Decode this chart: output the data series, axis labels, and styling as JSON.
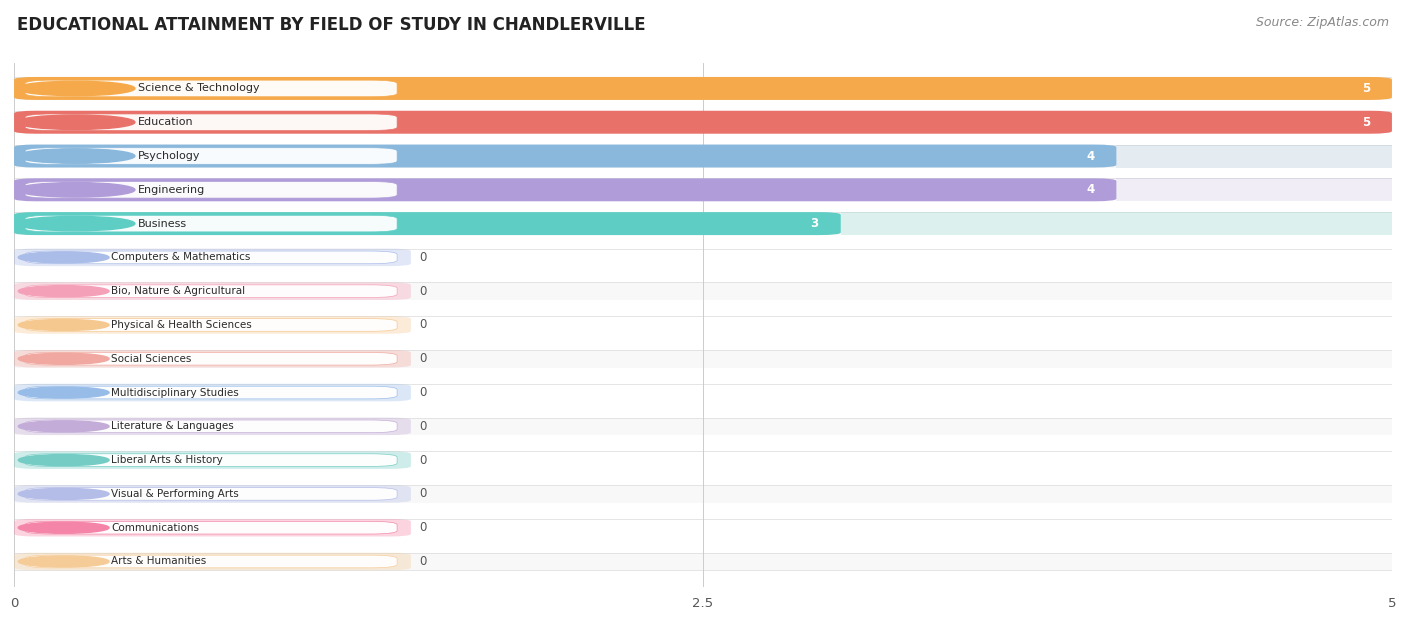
{
  "title": "EDUCATIONAL ATTAINMENT BY FIELD OF STUDY IN CHANDLERVILLE",
  "source": "Source: ZipAtlas.com",
  "categories": [
    "Science & Technology",
    "Education",
    "Psychology",
    "Engineering",
    "Business",
    "Computers & Mathematics",
    "Bio, Nature & Agricultural",
    "Physical & Health Sciences",
    "Social Sciences",
    "Multidisciplinary Studies",
    "Literature & Languages",
    "Liberal Arts & History",
    "Visual & Performing Arts",
    "Communications",
    "Arts & Humanities"
  ],
  "values": [
    5,
    5,
    4,
    4,
    3,
    0,
    0,
    0,
    0,
    0,
    0,
    0,
    0,
    0,
    0
  ],
  "bar_colors": [
    "#F5A94A",
    "#E8726A",
    "#8AB8DC",
    "#B09CD8",
    "#5ECEC4",
    "#AABCE8",
    "#F4A0B8",
    "#F5C890",
    "#F0A8A0",
    "#98BCE8",
    "#C4ACD8",
    "#74CCC4",
    "#B4BCE8",
    "#F484A8",
    "#F5CC98"
  ],
  "xlim": [
    0,
    5
  ],
  "xticks": [
    0,
    2.5,
    5
  ],
  "bg_color": "#FFFFFF",
  "row_bg_even": "#F8F8F8",
  "row_bg_odd": "#FFFFFF",
  "separator_color": "#E0E0E0",
  "title_fontsize": 12,
  "source_fontsize": 9,
  "label_fontsize": 8,
  "value_fontsize": 8.5
}
